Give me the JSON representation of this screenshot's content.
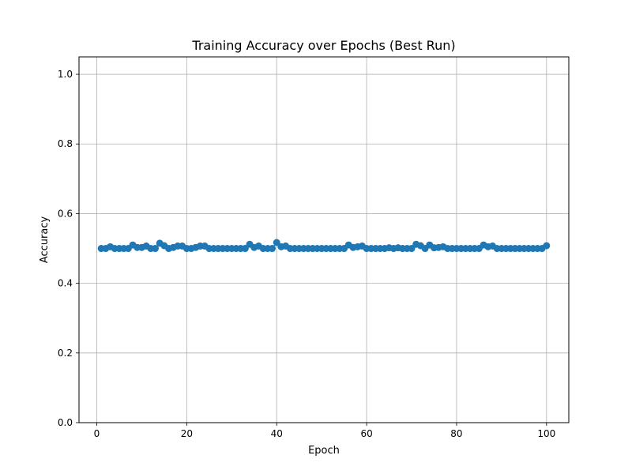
{
  "chart_data": {
    "type": "line",
    "title": "Training Accuracy over Epochs (Best Run)",
    "xlabel": "Epoch",
    "ylabel": "Accuracy",
    "xlim": [
      -3.95,
      104.95
    ],
    "ylim": [
      0.0,
      1.05
    ],
    "xticks": [
      0,
      20,
      40,
      60,
      80,
      100
    ],
    "yticks": [
      0.0,
      0.2,
      0.4,
      0.6,
      0.8,
      1.0
    ],
    "xtick_labels": [
      "0",
      "20",
      "40",
      "60",
      "80",
      "100"
    ],
    "ytick_labels": [
      "0.0",
      "0.2",
      "0.4",
      "0.6",
      "0.8",
      "1.0"
    ],
    "grid": true,
    "marker": "circle",
    "color": "#1f77b4",
    "series": [
      {
        "x": [
          1,
          2,
          3,
          4,
          5,
          6,
          7,
          8,
          9,
          10,
          11,
          12,
          13,
          14,
          15,
          16,
          17,
          18,
          19,
          20,
          21,
          22,
          23,
          24,
          25,
          26,
          27,
          28,
          29,
          30,
          31,
          32,
          33,
          34,
          35,
          36,
          37,
          38,
          39,
          40,
          41,
          42,
          43,
          44,
          45,
          46,
          47,
          48,
          49,
          50,
          51,
          52,
          53,
          54,
          55,
          56,
          57,
          58,
          59,
          60,
          61,
          62,
          63,
          64,
          65,
          66,
          67,
          68,
          69,
          70,
          71,
          72,
          73,
          74,
          75,
          76,
          77,
          78,
          79,
          80,
          81,
          82,
          83,
          84,
          85,
          86,
          87,
          88,
          89,
          90,
          91,
          92,
          93,
          94,
          95,
          96,
          97,
          98,
          99,
          100
        ],
        "values": [
          0.5,
          0.5,
          0.505,
          0.5,
          0.5,
          0.5,
          0.5,
          0.51,
          0.503,
          0.503,
          0.507,
          0.5,
          0.5,
          0.515,
          0.508,
          0.5,
          0.503,
          0.507,
          0.507,
          0.5,
          0.5,
          0.503,
          0.507,
          0.507,
          0.5,
          0.5,
          0.5,
          0.5,
          0.5,
          0.5,
          0.5,
          0.5,
          0.5,
          0.512,
          0.503,
          0.507,
          0.5,
          0.5,
          0.5,
          0.517,
          0.505,
          0.507,
          0.5,
          0.5,
          0.5,
          0.5,
          0.5,
          0.5,
          0.5,
          0.5,
          0.5,
          0.5,
          0.5,
          0.5,
          0.5,
          0.51,
          0.503,
          0.505,
          0.507,
          0.5,
          0.5,
          0.5,
          0.5,
          0.5,
          0.502,
          0.5,
          0.502,
          0.5,
          0.5,
          0.5,
          0.512,
          0.508,
          0.5,
          0.51,
          0.502,
          0.503,
          0.505,
          0.5,
          0.5,
          0.5,
          0.5,
          0.5,
          0.5,
          0.5,
          0.5,
          0.51,
          0.505,
          0.507,
          0.5,
          0.5,
          0.5,
          0.5,
          0.5,
          0.5,
          0.5,
          0.5,
          0.5,
          0.5,
          0.5,
          0.508
        ]
      }
    ]
  }
}
